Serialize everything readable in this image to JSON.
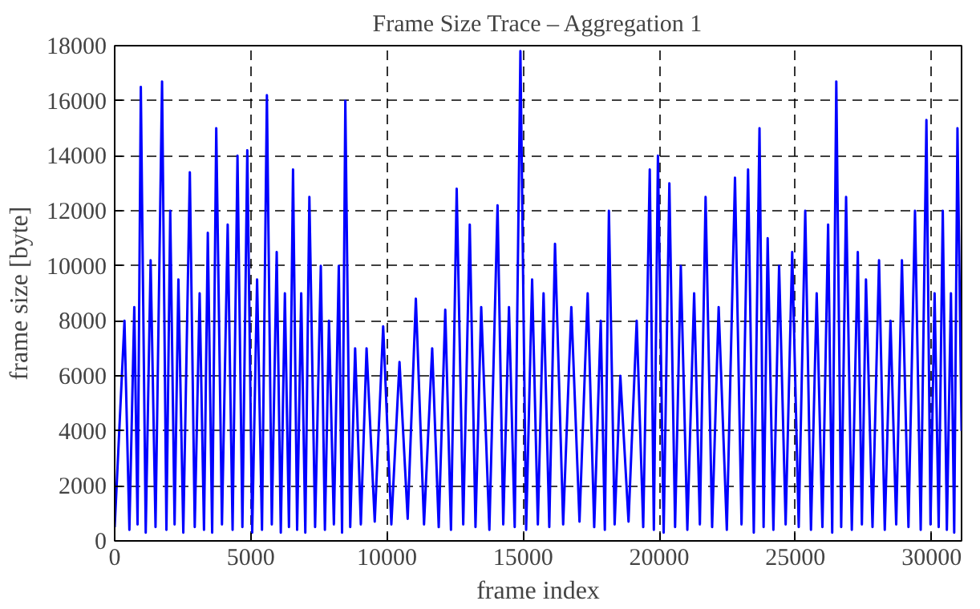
{
  "chart_data": {
    "type": "line",
    "title": "Frame Size Trace – Aggregation 1",
    "xlabel": "frame index",
    "ylabel": "frame size [byte]",
    "xlim": [
      0,
      31100
    ],
    "ylim": [
      0,
      18000
    ],
    "xticks": [
      0,
      5000,
      10000,
      15000,
      20000,
      25000,
      30000
    ],
    "yticks": [
      0,
      2000,
      4000,
      6000,
      8000,
      10000,
      12000,
      14000,
      16000,
      18000
    ],
    "grid": true,
    "line_style": "solid",
    "series": [
      {
        "color": "#0000ff",
        "x": [
          0,
          360,
          540,
          720,
          840,
          960,
          1140,
          1320,
          1500,
          1740,
          1900,
          2040,
          2200,
          2340,
          2520,
          2760,
          2940,
          3120,
          3280,
          3420,
          3580,
          3730,
          3940,
          4150,
          4330,
          4510,
          4690,
          4870,
          5050,
          5230,
          5410,
          5590,
          5770,
          5950,
          6100,
          6250,
          6400,
          6550,
          6700,
          6850,
          7000,
          7150,
          7360,
          7570,
          7720,
          7870,
          8050,
          8230,
          8350,
          8470,
          8650,
          8830,
          9040,
          9250,
          9550,
          9860,
          10160,
          10460,
          10760,
          11060,
          11360,
          11660,
          11900,
          12140,
          12350,
          12560,
          12800,
          13040,
          13250,
          13460,
          13760,
          14060,
          14270,
          14480,
          14690,
          14900,
          15110,
          15330,
          15540,
          15750,
          15960,
          16170,
          16470,
          16770,
          17070,
          17370,
          17610,
          17850,
          18000,
          18150,
          18360,
          18570,
          18870,
          19170,
          19410,
          19650,
          19800,
          19950,
          20160,
          20370,
          20580,
          20790,
          21030,
          21280,
          21490,
          21700,
          21940,
          22180,
          22480,
          22780,
          23020,
          23260,
          23470,
          23680,
          23830,
          23980,
          24190,
          24400,
          24640,
          24880,
          25120,
          25360,
          25570,
          25780,
          25990,
          26200,
          26350,
          26500,
          26680,
          26860,
          27070,
          27290,
          27440,
          27590,
          27830,
          28070,
          28280,
          28490,
          28700,
          28910,
          29150,
          29390,
          29600,
          29810,
          29960,
          30110,
          30260,
          30410,
          30560,
          30710,
          30830,
          30950,
          31100
        ],
        "values": [
          500,
          8000,
          400,
          8500,
          600,
          16500,
          300,
          10200,
          500,
          16700,
          400,
          12000,
          600,
          9500,
          300,
          13400,
          500,
          9000,
          400,
          11200,
          300,
          15000,
          600,
          11500,
          400,
          14000,
          500,
          14200,
          300,
          9500,
          400,
          16200,
          600,
          10500,
          300,
          9000,
          500,
          13500,
          400,
          9000,
          300,
          12500,
          500,
          10000,
          400,
          8000,
          600,
          10000,
          300,
          16000,
          500,
          7000,
          600,
          7000,
          700,
          7800,
          600,
          6500,
          800,
          8800,
          600,
          7000,
          500,
          8400,
          400,
          12800,
          600,
          11500,
          500,
          8500,
          400,
          12200,
          600,
          8500,
          500,
          17800,
          400,
          9500,
          600,
          9000,
          500,
          10800,
          600,
          8500,
          700,
          9000,
          500,
          8000,
          400,
          12000,
          600,
          6000,
          700,
          8000,
          500,
          13500,
          400,
          14000,
          300,
          13000,
          500,
          10000,
          400,
          9000,
          600,
          12500,
          500,
          8500,
          400,
          13200,
          600,
          13500,
          300,
          15000,
          500,
          11000,
          400,
          10000,
          600,
          10500,
          500,
          12000,
          400,
          9000,
          500,
          11500,
          300,
          16700,
          500,
          12500,
          400,
          10500,
          600,
          9500,
          500,
          10200,
          400,
          8000,
          600,
          10200,
          500,
          12000,
          400,
          15300,
          600,
          9000,
          500,
          12000,
          400,
          9000,
          300,
          15000,
          4000
        ]
      }
    ]
  }
}
